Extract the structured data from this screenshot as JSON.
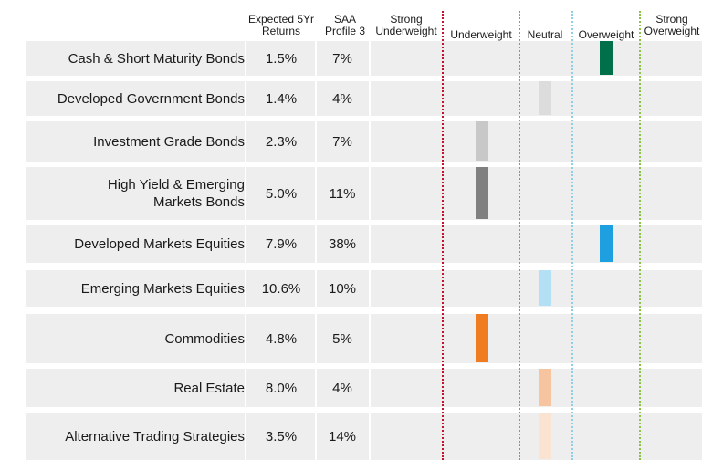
{
  "headers": {
    "returns": "Expected 5Yr\nReturns",
    "saa": "SAA\nProfile 3",
    "strong_under": "Strong\nUnderweight",
    "under": "Underweight",
    "neutral": "Neutral",
    "over": "Overweight",
    "strong_over": "Strong\nOverweight"
  },
  "chart_data": {
    "type": "table",
    "scale": [
      "Strong Underweight",
      "Underweight",
      "Neutral",
      "Overweight",
      "Strong Overweight"
    ],
    "scale_line_colors": [
      "#c8102e",
      "#e8782a",
      "#8fcfe8",
      "#8bc34a"
    ],
    "rows": [
      {
        "asset": "Cash & Short Maturity Bonds",
        "returns": "1.5%",
        "saa": "7%",
        "position": "Overweight",
        "color": "#00704a"
      },
      {
        "asset": "Developed Government Bonds",
        "returns": "1.4%",
        "saa": "4%",
        "position": "Neutral",
        "color": "#dcdcdc"
      },
      {
        "asset": "Investment Grade Bonds",
        "returns": "2.3%",
        "saa": "7%",
        "position": "Underweight",
        "color": "#c8c8c8"
      },
      {
        "asset": "High Yield & Emerging\nMarkets Bonds",
        "returns": "5.0%",
        "saa": "11%",
        "position": "Underweight",
        "color": "#808080"
      },
      {
        "asset": "Developed Markets Equities",
        "returns": "7.9%",
        "saa": "38%",
        "position": "Overweight",
        "color": "#1e9fe0"
      },
      {
        "asset": "Emerging Markets Equities",
        "returns": "10.6%",
        "saa": "10%",
        "position": "Neutral",
        "color": "#b3e0f5"
      },
      {
        "asset": "Commodities",
        "returns": "4.8%",
        "saa": "5%",
        "position": "Underweight",
        "color": "#f07c22"
      },
      {
        "asset": "Real Estate",
        "returns": "8.0%",
        "saa": "4%",
        "position": "Neutral",
        "color": "#f7c4a0"
      },
      {
        "asset": "Alternative Trading Strategies",
        "returns": "3.5%",
        "saa": "14%",
        "position": "Neutral",
        "color": "#fbe3d2"
      }
    ]
  }
}
